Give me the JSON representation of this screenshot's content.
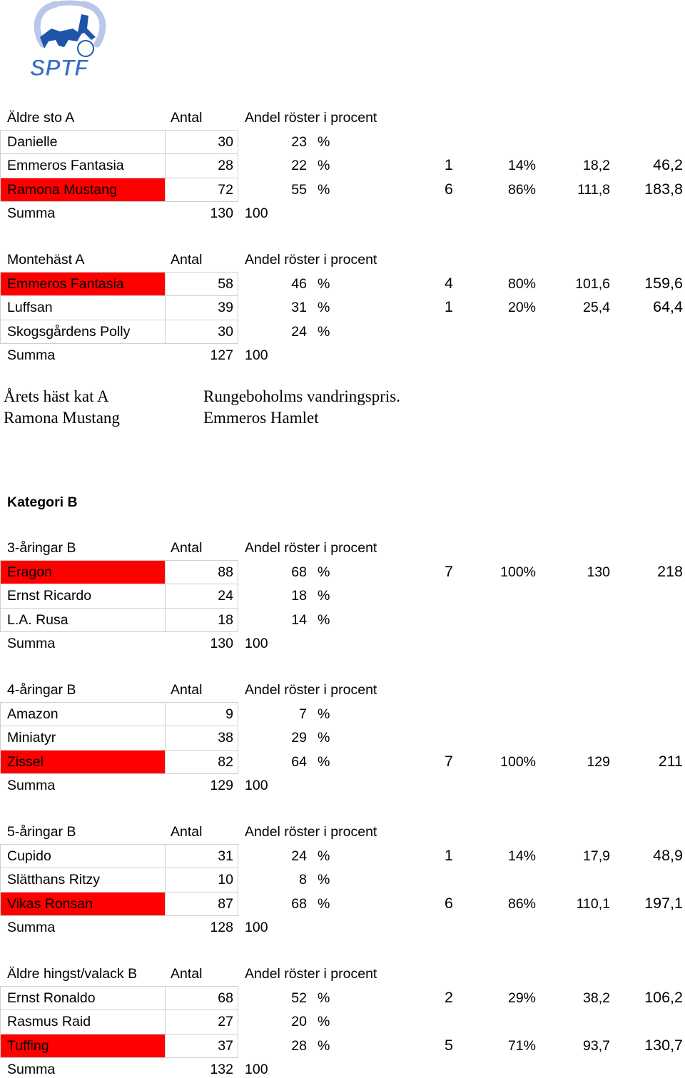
{
  "logo": {
    "text": "SPTF"
  },
  "sections_a": [
    {
      "header": [
        "Äldre sto A",
        "Antal",
        "Andel röster i procent"
      ],
      "rows": [
        {
          "name": "Danielle",
          "antal": "30",
          "andel": "23",
          "unit": "%"
        },
        {
          "name": "Emmeros Fantasia",
          "antal": "28",
          "andel": "22",
          "unit": "%",
          "extra": [
            "1",
            "14%",
            "18,2",
            "46,2"
          ]
        },
        {
          "name": "Ramona Mustang",
          "antal": "72",
          "andel": "55",
          "unit": "%",
          "extra": [
            "6",
            "86%",
            "111,8",
            "183,8"
          ],
          "highlight": true
        }
      ],
      "summa": [
        "Summa",
        "130",
        "100"
      ]
    },
    {
      "header": [
        "Montehäst A",
        "Antal",
        "Andel röster i procent"
      ],
      "rows": [
        {
          "name": "Emmeros Fantasia",
          "antal": "58",
          "andel": "46",
          "unit": "%",
          "extra": [
            "4",
            "80%",
            "101,6",
            "159,6"
          ],
          "highlight": true
        },
        {
          "name": "Luffsan",
          "antal": "39",
          "andel": "31",
          "unit": "%",
          "extra": [
            "1",
            "20%",
            "25,4",
            "64,4"
          ]
        },
        {
          "name": "Skogsgårdens Polly",
          "antal": "30",
          "andel": "24",
          "unit": "%"
        }
      ],
      "summa": [
        "Summa",
        "127",
        "100"
      ]
    }
  ],
  "award": {
    "left": [
      "Årets häst kat A",
      "Ramona Mustang"
    ],
    "right": [
      "Rungeboholms vandringspris.",
      "Emmeros Hamlet"
    ]
  },
  "category_b_title": "Kategori B",
  "sections_b": [
    {
      "header": [
        "3-åringar B",
        "Antal",
        "Andel röster i procent"
      ],
      "rows": [
        {
          "name": "Eragon",
          "antal": "88",
          "andel": "68",
          "unit": "%",
          "extra": [
            "7",
            "100%",
            "130",
            "218"
          ],
          "highlight": true
        },
        {
          "name": "Ernst Ricardo",
          "antal": "24",
          "andel": "18",
          "unit": "%"
        },
        {
          "name": "L.A. Rusa",
          "antal": "18",
          "andel": "14",
          "unit": "%"
        }
      ],
      "summa": [
        "Summa",
        "130",
        "100"
      ]
    },
    {
      "header": [
        "4-åringar B",
        "Antal",
        "Andel röster i procent"
      ],
      "rows": [
        {
          "name": "Amazon",
          "antal": "9",
          "andel": "7",
          "unit": "%"
        },
        {
          "name": "Miniatyr",
          "antal": "38",
          "andel": "29",
          "unit": "%"
        },
        {
          "name": "Zissel",
          "antal": "82",
          "andel": "64",
          "unit": "%",
          "extra": [
            "7",
            "100%",
            "129",
            "211"
          ],
          "highlight": true
        }
      ],
      "summa": [
        "Summa",
        "129",
        "100"
      ]
    },
    {
      "header": [
        "5-åringar B",
        "Antal",
        "Andel röster i procent"
      ],
      "rows": [
        {
          "name": "Cupido",
          "antal": "31",
          "andel": "24",
          "unit": "%",
          "extra": [
            "1",
            "14%",
            "17,9",
            "48,9"
          ]
        },
        {
          "name": "Slätthans Ritzy",
          "antal": "10",
          "andel": "8",
          "unit": "%"
        },
        {
          "name": "Vikas Ronsan",
          "antal": "87",
          "andel": "68",
          "unit": "%",
          "extra": [
            "6",
            "86%",
            "110,1",
            "197,1"
          ],
          "highlight": true
        }
      ],
      "summa": [
        "Summa",
        "128",
        "100"
      ]
    },
    {
      "header": [
        "Äldre hingst/valack B",
        "Antal",
        "Andel röster i procent"
      ],
      "rows": [
        {
          "name": "Ernst Ronaldo",
          "antal": "68",
          "andel": "52",
          "unit": "%",
          "extra": [
            "2",
            "29%",
            "38,2",
            "106,2"
          ]
        },
        {
          "name": "Rasmus Raid",
          "antal": "27",
          "andel": "20",
          "unit": "%"
        },
        {
          "name": "Tuffing",
          "antal": "37",
          "andel": "28",
          "unit": "%",
          "extra": [
            "5",
            "71%",
            "93,7",
            "130,7"
          ],
          "highlight": true
        }
      ],
      "summa": [
        "Summa",
        "132",
        "100"
      ]
    }
  ]
}
